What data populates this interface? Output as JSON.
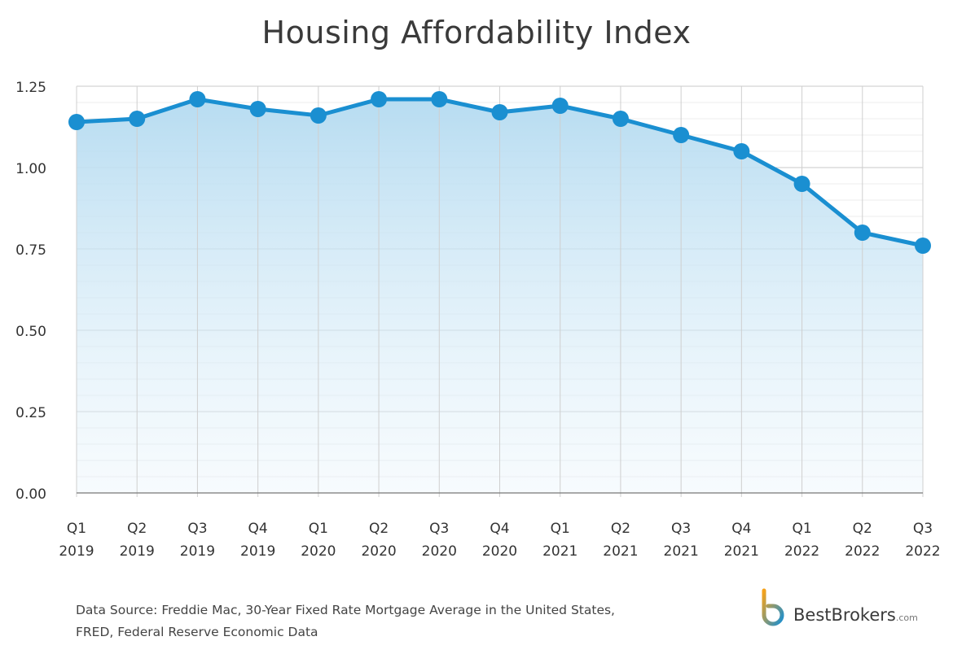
{
  "chart_data": {
    "type": "area",
    "title": "Housing Affordability Index",
    "categories": [
      [
        "Q1",
        "2019"
      ],
      [
        "Q2",
        "2019"
      ],
      [
        "Q3",
        "2019"
      ],
      [
        "Q4",
        "2019"
      ],
      [
        "Q1",
        "2020"
      ],
      [
        "Q2",
        "2020"
      ],
      [
        "Q3",
        "2020"
      ],
      [
        "Q4",
        "2020"
      ],
      [
        "Q1",
        "2021"
      ],
      [
        "Q2",
        "2021"
      ],
      [
        "Q3",
        "2021"
      ],
      [
        "Q4",
        "2021"
      ],
      [
        "Q1",
        "2022"
      ],
      [
        "Q2",
        "2022"
      ],
      [
        "Q3",
        "2022"
      ]
    ],
    "values": [
      1.14,
      1.15,
      1.21,
      1.18,
      1.16,
      1.21,
      1.21,
      1.17,
      1.19,
      1.15,
      1.1,
      1.05,
      0.95,
      0.8,
      0.76
    ],
    "ylim": [
      0,
      1.25
    ],
    "yticks": [
      "0.00",
      "0.25",
      "0.50",
      "0.75",
      "1.00",
      "1.25"
    ],
    "grid": true,
    "line_color": "#1a8fd1",
    "fill_color": "#bfe0f3"
  },
  "footer": {
    "source_line1": "Data Source: Freddie Mac, 30-Year Fixed Rate Mortgage Average in the United States,",
    "source_line2": "FRED, Federal Reserve Economic Data"
  },
  "brand": {
    "name": "BestBrokers",
    "suffix": ".com",
    "icon": "bestbrokers-logo-icon"
  }
}
